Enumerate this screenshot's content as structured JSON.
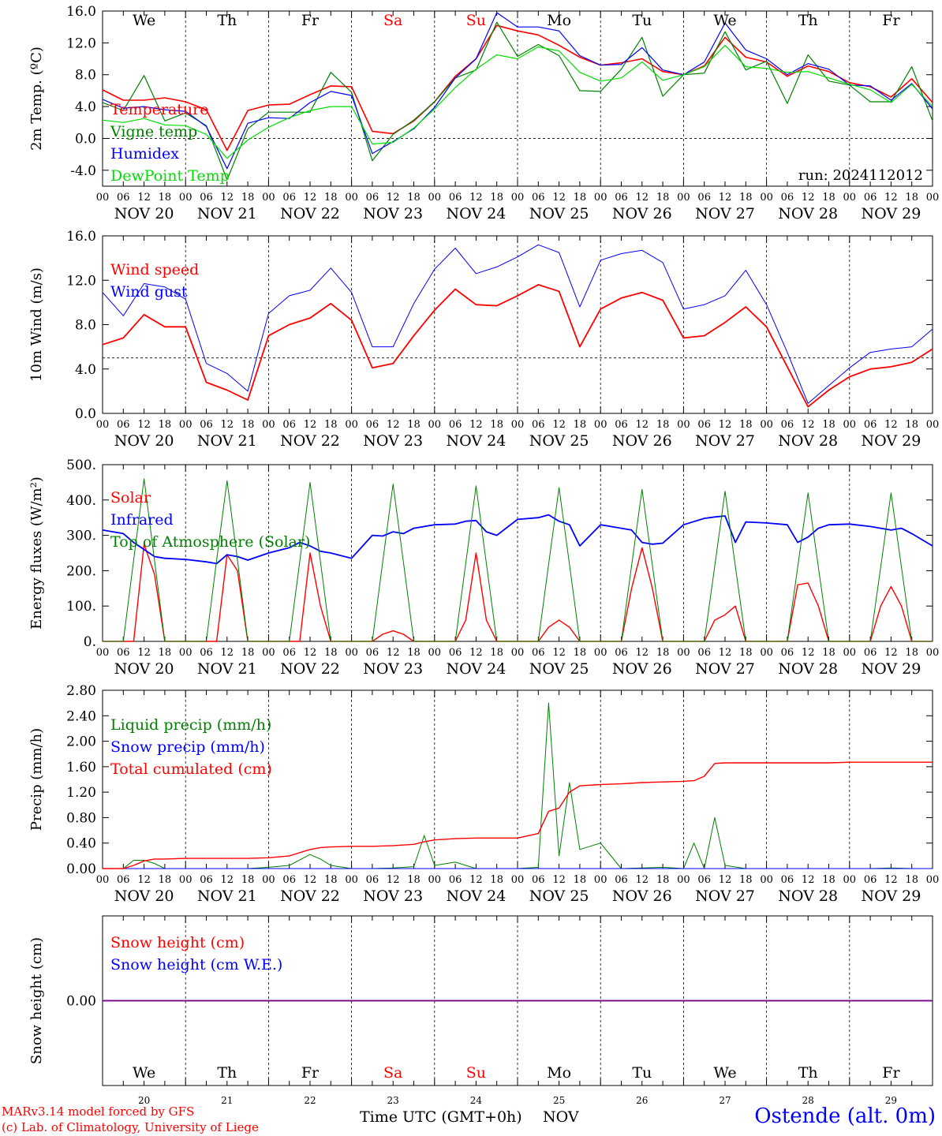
{
  "run_label": "run: 2024112012",
  "credits": {
    "line1": "MARv3.14 model forced by GFS",
    "line2": "(c) Lab. of Climatology, University of Liege"
  },
  "station": "Ostende (alt. 0m)",
  "x_title": "Time UTC (GMT+0h)",
  "x_month": "NOV",
  "colors": {
    "red": "#ff0000",
    "green": "#008000",
    "blue": "#0000ff",
    "lightgreen": "#00dd00",
    "purple": "#800080"
  },
  "chart_data": [
    {
      "type": "line",
      "ylabel": "2m Temp. (ºC)",
      "ylim": [
        -6,
        16
      ],
      "yticks": [
        "16.0",
        "12.0",
        "8.0",
        "4.0",
        "0.0",
        "-4.0"
      ],
      "dashed_ref": 0,
      "day_names": [
        "We",
        "Th",
        "Fr",
        "Sa",
        "Su",
        "Mo",
        "Tu",
        "We",
        "Th",
        "Fr"
      ],
      "day_name_colors": [
        "#000000",
        "#000000",
        "#000000",
        "#ff0000",
        "#ff0000",
        "#000000",
        "#000000",
        "#000000",
        "#000000",
        "#000000"
      ],
      "x": [
        0,
        6,
        12,
        18,
        24,
        30,
        36,
        42,
        48,
        54,
        60,
        66,
        72,
        78,
        84,
        90,
        96,
        102,
        108,
        114,
        120,
        126,
        132,
        138,
        144,
        150,
        156,
        162,
        168,
        174,
        180,
        186,
        192,
        198,
        204,
        210,
        216,
        222,
        228,
        234,
        240
      ],
      "series": [
        {
          "name": "Temperature",
          "color": "#ff0000",
          "width": 1.6,
          "values": [
            6.1,
            4.8,
            4.8,
            5.1,
            4.6,
            3.6,
            -1.5,
            3.5,
            4.2,
            4.3,
            5.5,
            6.6,
            6.5,
            0.9,
            0.6,
            2.2,
            4.6,
            7.8,
            10.0,
            14.2,
            13.5,
            13.0,
            11.7,
            10.2,
            9.2,
            9.5,
            10.0,
            8.4,
            8.0,
            9.1,
            12.7,
            10.2,
            9.6,
            7.8,
            9.1,
            8.4,
            7.0,
            6.5,
            5.2,
            7.5,
            4.5
          ]
        },
        {
          "name": "Vigne temp",
          "color": "#008000",
          "width": 1.2,
          "values": [
            4.5,
            3.5,
            7.9,
            2.2,
            3.2,
            1.6,
            -5.2,
            1.2,
            3.3,
            3.3,
            3.3,
            8.3,
            5.8,
            -2.8,
            0.5,
            2.3,
            4.6,
            7.6,
            8.6,
            14.6,
            10.3,
            11.8,
            10.4,
            6.0,
            5.9,
            8.7,
            12.7,
            5.3,
            8.0,
            8.2,
            13.4,
            8.6,
            9.7,
            4.4,
            10.5,
            7.2,
            6.7,
            4.6,
            4.6,
            9.0,
            2.2
          ]
        },
        {
          "name": "Humidex",
          "color": "#0000ff",
          "width": 1.2,
          "values": [
            4.9,
            3.8,
            4.0,
            3.6,
            3.4,
            1.5,
            -3.8,
            1.9,
            2.6,
            2.5,
            4.5,
            5.9,
            5.4,
            -1.9,
            -0.4,
            1.2,
            3.9,
            7.6,
            10.0,
            15.8,
            14.0,
            14.0,
            13.5,
            10.4,
            9.2,
            9.3,
            11.4,
            8.6,
            8.0,
            9.6,
            14.5,
            11.1,
            10.0,
            8.0,
            9.4,
            8.7,
            6.7,
            6.6,
            4.8,
            6.9,
            3.7
          ]
        },
        {
          "name": "DewPoint Temp",
          "color": "#00dd00",
          "width": 1.2,
          "values": [
            2.3,
            2.0,
            2.5,
            1.7,
            1.6,
            0.5,
            -2.5,
            -0.2,
            1.4,
            2.6,
            3.5,
            4.0,
            4.0,
            -0.7,
            -0.5,
            1.3,
            3.7,
            6.4,
            8.7,
            10.5,
            10.0,
            11.5,
            11.0,
            8.3,
            7.2,
            7.6,
            9.6,
            7.3,
            8.0,
            9.0,
            11.7,
            9.0,
            8.8,
            8.3,
            8.4,
            7.6,
            6.8,
            6.1,
            4.5,
            6.8,
            4.0
          ]
        }
      ]
    },
    {
      "type": "line",
      "ylabel": "10m Wind (m/s)",
      "ylim": [
        0,
        16
      ],
      "yticks": [
        "16.0",
        "12.0",
        "8.0",
        "4.0",
        "0.0"
      ],
      "dashed_ref": 5,
      "x": [
        0,
        6,
        12,
        18,
        24,
        30,
        36,
        42,
        48,
        54,
        60,
        66,
        72,
        78,
        84,
        90,
        96,
        102,
        108,
        114,
        120,
        126,
        132,
        138,
        144,
        150,
        156,
        162,
        168,
        174,
        180,
        186,
        192,
        198,
        204,
        210,
        216,
        222,
        228,
        234,
        240
      ],
      "series": [
        {
          "name": "Wind speed",
          "color": "#ff0000",
          "width": 1.8,
          "values": [
            6.2,
            6.8,
            8.9,
            7.8,
            7.8,
            2.8,
            2.1,
            1.2,
            7.0,
            8.0,
            8.6,
            9.9,
            8.4,
            4.1,
            4.5,
            7.0,
            9.3,
            11.2,
            9.8,
            9.7,
            10.6,
            11.6,
            11.0,
            6.0,
            9.4,
            10.4,
            10.9,
            10.2,
            6.8,
            7.0,
            8.2,
            9.6,
            7.8,
            4.2,
            0.6,
            2.1,
            3.3,
            4.0,
            4.2,
            4.6,
            5.8
          ]
        },
        {
          "name": "Wind gust",
          "color": "#0000ff",
          "width": 1.0,
          "values": [
            10.9,
            8.8,
            11.7,
            11.4,
            10.3,
            4.5,
            3.6,
            2.0,
            9.0,
            10.6,
            11.1,
            13.1,
            10.9,
            6.0,
            6.0,
            9.9,
            13.0,
            14.9,
            12.6,
            13.2,
            14.1,
            15.2,
            14.5,
            9.6,
            13.8,
            14.4,
            14.7,
            13.6,
            9.4,
            9.8,
            10.6,
            12.9,
            9.8,
            5.5,
            0.9,
            2.5,
            4.1,
            5.5,
            5.8,
            6.0,
            7.6
          ]
        }
      ]
    },
    {
      "type": "line",
      "ylabel": "Energy fluxes (W/m²)",
      "ylim": [
        0,
        500
      ],
      "yticks": [
        "500.",
        "400.",
        "300.",
        "200.",
        "100.",
        "0."
      ],
      "x": [
        0,
        6,
        9,
        12,
        15,
        18,
        24,
        30,
        33,
        36,
        39,
        42,
        48,
        54,
        57,
        60,
        63,
        66,
        72,
        78,
        81,
        84,
        87,
        90,
        96,
        102,
        105,
        108,
        111,
        114,
        120,
        126,
        129,
        132,
        135,
        138,
        144,
        150,
        153,
        156,
        159,
        162,
        168,
        174,
        177,
        180,
        183,
        186,
        192,
        198,
        201,
        204,
        207,
        210,
        216,
        222,
        225,
        228,
        231,
        234,
        240
      ],
      "series": [
        {
          "name": "Solar",
          "color": "#ff0000",
          "width": 1.4,
          "values": [
            0,
            0,
            0,
            275,
            190,
            0,
            0,
            0,
            0,
            245,
            200,
            0,
            0,
            0,
            0,
            250,
            100,
            0,
            0,
            0,
            20,
            30,
            20,
            0,
            0,
            0,
            60,
            250,
            60,
            0,
            0,
            0,
            40,
            60,
            40,
            0,
            0,
            0,
            150,
            265,
            150,
            0,
            0,
            0,
            60,
            75,
            100,
            0,
            0,
            0,
            160,
            165,
            100,
            0,
            0,
            0,
            100,
            155,
            100,
            0,
            0
          ]
        },
        {
          "name": "Infrared",
          "color": "#0000ff",
          "width": 1.8,
          "values": [
            315,
            305,
            280,
            260,
            240,
            235,
            232,
            225,
            220,
            245,
            240,
            230,
            250,
            265,
            280,
            270,
            255,
            250,
            235,
            300,
            298,
            310,
            305,
            320,
            330,
            332,
            340,
            342,
            310,
            300,
            345,
            350,
            358,
            340,
            330,
            270,
            330,
            320,
            315,
            280,
            275,
            278,
            330,
            348,
            352,
            355,
            280,
            338,
            335,
            330,
            280,
            295,
            320,
            330,
            332,
            325,
            320,
            315,
            320,
            305,
            270
          ]
        },
        {
          "name": "Top of Atmosphere (Solar)",
          "color": "#008000",
          "width": 1.0,
          "values": [
            0,
            0,
            230,
            460,
            230,
            0,
            0,
            0,
            230,
            455,
            230,
            0,
            0,
            0,
            225,
            450,
            225,
            0,
            0,
            0,
            225,
            445,
            225,
            0,
            0,
            0,
            220,
            440,
            220,
            0,
            0,
            0,
            218,
            435,
            218,
            0,
            0,
            0,
            215,
            430,
            215,
            0,
            0,
            0,
            212,
            425,
            212,
            0,
            0,
            0,
            210,
            420,
            210,
            0,
            0,
            0,
            210,
            420,
            210,
            0,
            0
          ]
        }
      ]
    },
    {
      "type": "line",
      "ylabel": "Precip (mm/h)",
      "ylim": [
        0,
        2.8
      ],
      "yticks": [
        "2.80",
        "2.40",
        "2.00",
        "1.60",
        "1.20",
        "0.80",
        "0.40",
        "0.00"
      ],
      "x": [
        0,
        6,
        9,
        12,
        15,
        18,
        24,
        30,
        36,
        42,
        48,
        54,
        60,
        63,
        66,
        72,
        78,
        84,
        90,
        93,
        96,
        102,
        108,
        114,
        120,
        126,
        129,
        132,
        135,
        138,
        144,
        150,
        156,
        162,
        168,
        171,
        174,
        177,
        180,
        186,
        192,
        198,
        204,
        210,
        216,
        222,
        228,
        234,
        240
      ],
      "series": [
        {
          "name": "Liquid precip (mm/h)",
          "color": "#008000",
          "width": 1.0,
          "values": [
            0,
            0,
            0.13,
            0.13,
            0.08,
            0,
            0,
            0,
            0,
            0,
            0.02,
            0.05,
            0.22,
            0.15,
            0.05,
            0,
            0,
            0.01,
            0.03,
            0.52,
            0.05,
            0.1,
            0,
            0,
            0,
            0.02,
            2.6,
            0.2,
            1.35,
            0.3,
            0.4,
            0,
            0.01,
            0.02,
            0,
            0.4,
            0,
            0.8,
            0.05,
            0,
            0,
            0,
            0,
            0,
            0,
            0,
            0.01,
            0,
            0
          ]
        },
        {
          "name": "Snow precip (mm/h)",
          "color": "#0000ff",
          "width": 1.0,
          "values": [
            0,
            0,
            0,
            0,
            0,
            0,
            0,
            0,
            0,
            0,
            0,
            0,
            0,
            0,
            0,
            0,
            0,
            0,
            0,
            0,
            0,
            0,
            0,
            0,
            0,
            0,
            0,
            0,
            0,
            0,
            0,
            0,
            0,
            0,
            0,
            0,
            0,
            0,
            0,
            0,
            0,
            0,
            0,
            0,
            0,
            0,
            0,
            0,
            0
          ]
        },
        {
          "name": "Total cumulated (cm)",
          "color": "#ff0000",
          "width": 1.4,
          "values": [
            0,
            0,
            0.05,
            0.12,
            0.15,
            0.15,
            0.16,
            0.16,
            0.16,
            0.16,
            0.17,
            0.2,
            0.3,
            0.33,
            0.34,
            0.35,
            0.35,
            0.36,
            0.38,
            0.42,
            0.45,
            0.47,
            0.48,
            0.48,
            0.48,
            0.55,
            0.9,
            0.95,
            1.2,
            1.3,
            1.32,
            1.33,
            1.35,
            1.36,
            1.37,
            1.38,
            1.45,
            1.65,
            1.66,
            1.66,
            1.66,
            1.66,
            1.66,
            1.66,
            1.67,
            1.67,
            1.67,
            1.67,
            1.67
          ]
        }
      ]
    },
    {
      "type": "line",
      "ylabel": "Snow height (cm)",
      "ylim": [
        -1,
        1
      ],
      "yticks": [
        "0.00"
      ],
      "day_names": [
        "We",
        "Th",
        "Fr",
        "Sa",
        "Su",
        "Mo",
        "Tu",
        "We",
        "Th",
        "Fr"
      ],
      "day_name_colors": [
        "#000000",
        "#000000",
        "#000000",
        "#ff0000",
        "#ff0000",
        "#000000",
        "#000000",
        "#000000",
        "#000000",
        "#000000"
      ],
      "day_numbers": [
        "20",
        "21",
        "22",
        "23",
        "24",
        "25",
        "26",
        "27",
        "28",
        "29"
      ],
      "x": [
        0,
        240
      ],
      "series": [
        {
          "name": "Snow height (cm)",
          "color": "#ff0000",
          "width": 1.4,
          "values": [
            0,
            0
          ]
        },
        {
          "name": "Snow height (cm W.E.)",
          "color": "#0000ff",
          "width": 1.4,
          "values": [
            0,
            0
          ]
        }
      ]
    }
  ],
  "x_hour_ticks": [
    "00",
    "06",
    "12",
    "18"
  ],
  "x_end_tick": "00",
  "x_date_labels": [
    "NOV 20",
    "NOV 21",
    "NOV 22",
    "NOV 23",
    "NOV 24",
    "NOV 25",
    "NOV 26",
    "NOV 27",
    "NOV 28",
    "NOV 29"
  ]
}
